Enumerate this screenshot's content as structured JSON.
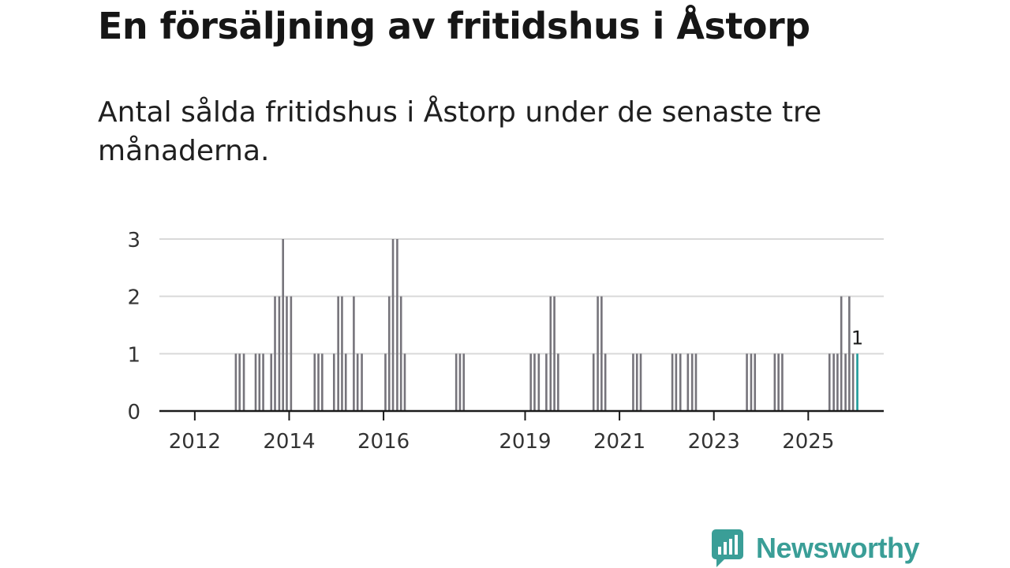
{
  "title": "En försäljning av fritidshus i Åstorp",
  "subtitle": "Antal sålda fritidshus i Åstorp under de senaste tre månaderna.",
  "brand": "Newsworthy",
  "colors": {
    "bar": "#76747b",
    "highlight": "#1d9a99",
    "grid": "#d9d9d9",
    "axis": "#1a1a1a",
    "brand": "#3a9e97"
  },
  "chart_data": {
    "type": "bar",
    "title": "En försäljning av fritidshus i Åstorp",
    "ylabel": "",
    "xlabel": "",
    "ylim": [
      0,
      3
    ],
    "y_ticks": [
      "0",
      "1",
      "2",
      "3"
    ],
    "x_ticks": [
      "2012",
      "2014",
      "2016",
      "2019",
      "2021",
      "2023",
      "2025"
    ],
    "x_tick_values": [
      2012,
      2014,
      2016,
      2019,
      2021,
      2023,
      2025
    ],
    "x_range": [
      2011.25,
      2026.6
    ],
    "grid": true,
    "annotation": "1",
    "series": [
      {
        "name": "Antal sålda fritidshus",
        "points": [
          {
            "t": 2012.87,
            "v": 1
          },
          {
            "t": 2012.95,
            "v": 1
          },
          {
            "t": 2013.04,
            "v": 1
          },
          {
            "t": 2013.29,
            "v": 1
          },
          {
            "t": 2013.37,
            "v": 1
          },
          {
            "t": 2013.45,
            "v": 1
          },
          {
            "t": 2013.62,
            "v": 1
          },
          {
            "t": 2013.7,
            "v": 2
          },
          {
            "t": 2013.79,
            "v": 2
          },
          {
            "t": 2013.87,
            "v": 3
          },
          {
            "t": 2013.95,
            "v": 2
          },
          {
            "t": 2014.04,
            "v": 2
          },
          {
            "t": 2014.54,
            "v": 1
          },
          {
            "t": 2014.62,
            "v": 1
          },
          {
            "t": 2014.7,
            "v": 1
          },
          {
            "t": 2014.95,
            "v": 1
          },
          {
            "t": 2015.04,
            "v": 2
          },
          {
            "t": 2015.12,
            "v": 2
          },
          {
            "t": 2015.2,
            "v": 1
          },
          {
            "t": 2015.37,
            "v": 2
          },
          {
            "t": 2015.45,
            "v": 1
          },
          {
            "t": 2015.54,
            "v": 1
          },
          {
            "t": 2016.04,
            "v": 1
          },
          {
            "t": 2016.12,
            "v": 2
          },
          {
            "t": 2016.2,
            "v": 3
          },
          {
            "t": 2016.29,
            "v": 3
          },
          {
            "t": 2016.37,
            "v": 2
          },
          {
            "t": 2016.45,
            "v": 1
          },
          {
            "t": 2017.54,
            "v": 1
          },
          {
            "t": 2017.62,
            "v": 1
          },
          {
            "t": 2017.7,
            "v": 1
          },
          {
            "t": 2019.12,
            "v": 1
          },
          {
            "t": 2019.2,
            "v": 1
          },
          {
            "t": 2019.29,
            "v": 1
          },
          {
            "t": 2019.45,
            "v": 1
          },
          {
            "t": 2019.54,
            "v": 2
          },
          {
            "t": 2019.62,
            "v": 2
          },
          {
            "t": 2019.7,
            "v": 1
          },
          {
            "t": 2020.45,
            "v": 1
          },
          {
            "t": 2020.54,
            "v": 2
          },
          {
            "t": 2020.62,
            "v": 2
          },
          {
            "t": 2020.7,
            "v": 1
          },
          {
            "t": 2021.29,
            "v": 1
          },
          {
            "t": 2021.37,
            "v": 1
          },
          {
            "t": 2021.45,
            "v": 1
          },
          {
            "t": 2022.12,
            "v": 1
          },
          {
            "t": 2022.2,
            "v": 1
          },
          {
            "t": 2022.29,
            "v": 1
          },
          {
            "t": 2022.45,
            "v": 1
          },
          {
            "t": 2022.54,
            "v": 1
          },
          {
            "t": 2022.62,
            "v": 1
          },
          {
            "t": 2023.7,
            "v": 1
          },
          {
            "t": 2023.79,
            "v": 1
          },
          {
            "t": 2023.87,
            "v": 1
          },
          {
            "t": 2024.29,
            "v": 1
          },
          {
            "t": 2024.37,
            "v": 1
          },
          {
            "t": 2024.45,
            "v": 1
          },
          {
            "t": 2025.45,
            "v": 1
          },
          {
            "t": 2025.54,
            "v": 1
          },
          {
            "t": 2025.62,
            "v": 1
          },
          {
            "t": 2025.7,
            "v": 2
          },
          {
            "t": 2025.79,
            "v": 1
          },
          {
            "t": 2025.87,
            "v": 2
          },
          {
            "t": 2025.95,
            "v": 1
          },
          {
            "t": 2026.04,
            "v": 1,
            "highlight": true
          }
        ]
      }
    ]
  }
}
